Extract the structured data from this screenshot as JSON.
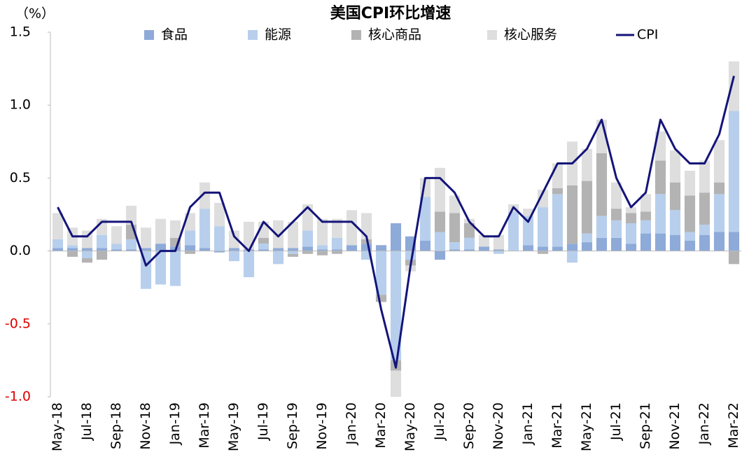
{
  "chart_data": {
    "type": "bar",
    "title": "美国CPI环比增速",
    "y_unit": "（%）",
    "categories": [
      "May-18",
      null,
      "Jul-18",
      null,
      "Sep-18",
      null,
      "Nov-18",
      null,
      "Jan-19",
      null,
      "Mar-19",
      null,
      "May-19",
      null,
      "Jul-19",
      null,
      "Sep-19",
      null,
      "Nov-19",
      null,
      "Jan-20",
      null,
      "Mar-20",
      null,
      "May-20",
      null,
      "Jul-20",
      null,
      "Sep-20",
      null,
      "Nov-20",
      null,
      "Jan-21",
      null,
      "Mar-21",
      null,
      "May-21",
      null,
      "Jul-21",
      null,
      "Sep-21",
      null,
      "Nov-21",
      null,
      "Jan-22",
      null,
      "Mar-22"
    ],
    "series": [
      {
        "name": "食品",
        "type": "bar",
        "color": "#8eaad8",
        "values": [
          0.02,
          0.02,
          0.02,
          0.02,
          0.01,
          0.01,
          0.02,
          0.05,
          0.03,
          0.04,
          0.02,
          -0.01,
          0.02,
          0.01,
          0.01,
          0.02,
          0.02,
          0.03,
          0.01,
          0.01,
          0.04,
          0.05,
          0.04,
          0.19,
          0.1,
          0.07,
          -0.06,
          0.01,
          0.01,
          0.03,
          0.01,
          0.0,
          0.04,
          0.03,
          0.03,
          0.05,
          0.06,
          0.09,
          0.09,
          0.05,
          0.12,
          0.12,
          0.11,
          0.07,
          0.11,
          0.13,
          0.13
        ]
      },
      {
        "name": "能源",
        "type": "bar",
        "color": "#b7cfec",
        "values": [
          0.06,
          0.02,
          -0.05,
          0.09,
          0.04,
          0.07,
          -0.26,
          -0.23,
          -0.24,
          0.1,
          0.27,
          0.17,
          -0.07,
          -0.18,
          0.04,
          -0.09,
          -0.02,
          0.11,
          0.03,
          0.08,
          0.0,
          -0.06,
          -0.3,
          -0.75,
          -0.06,
          0.3,
          0.13,
          0.05,
          0.08,
          0.0,
          -0.02,
          0.27,
          0.2,
          0.27,
          0.36,
          -0.08,
          0.06,
          0.15,
          0.12,
          0.14,
          0.09,
          0.27,
          0.17,
          0.06,
          0.07,
          0.26,
          0.83
        ]
      },
      {
        "name": "核心商品",
        "type": "bar",
        "color": "#b3b3b3",
        "values": [
          0.0,
          -0.04,
          -0.03,
          -0.06,
          0.0,
          0.1,
          0.0,
          0.0,
          0.06,
          -0.02,
          0.0,
          0.0,
          0.0,
          0.0,
          0.04,
          0.0,
          -0.02,
          -0.02,
          -0.03,
          -0.02,
          0.0,
          0.03,
          -0.05,
          -0.07,
          -0.04,
          0.0,
          0.14,
          0.2,
          0.1,
          0.0,
          0.0,
          0.0,
          0.0,
          -0.02,
          0.04,
          0.4,
          0.36,
          0.43,
          0.08,
          0.07,
          0.06,
          0.23,
          0.19,
          0.25,
          0.22,
          0.08,
          -0.09
        ]
      },
      {
        "name": "核心服务",
        "type": "bar",
        "color": "#dedede",
        "values": [
          0.18,
          0.12,
          0.12,
          0.11,
          0.12,
          0.13,
          0.14,
          0.17,
          0.12,
          0.12,
          0.18,
          0.16,
          0.12,
          0.19,
          0.11,
          0.19,
          0.18,
          0.18,
          0.18,
          0.13,
          0.24,
          0.18,
          0.0,
          -0.18,
          -0.04,
          0.13,
          0.3,
          0.12,
          0.03,
          0.08,
          0.1,
          0.05,
          0.05,
          0.12,
          0.17,
          0.3,
          0.22,
          0.23,
          0.18,
          0.04,
          0.12,
          0.2,
          0.22,
          0.17,
          0.22,
          0.29,
          0.34
        ]
      },
      {
        "name": "CPI",
        "type": "line",
        "color": "#14147a",
        "values": [
          0.3,
          0.1,
          0.1,
          0.2,
          0.2,
          0.2,
          -0.1,
          0.0,
          0.0,
          0.3,
          0.4,
          0.4,
          0.1,
          0.0,
          0.2,
          0.1,
          0.2,
          0.3,
          0.2,
          0.2,
          0.2,
          0.1,
          -0.4,
          -0.8,
          -0.1,
          0.5,
          0.5,
          0.4,
          0.2,
          0.1,
          0.1,
          0.3,
          0.2,
          0.4,
          0.6,
          0.6,
          0.7,
          0.9,
          0.5,
          0.3,
          0.4,
          0.9,
          0.7,
          0.6,
          0.6,
          0.8,
          1.2
        ]
      }
    ],
    "ylim": [
      -1.0,
      1.5
    ],
    "yticks": [
      {
        "value": -1.0,
        "label": "-1.0"
      },
      {
        "value": -0.5,
        "label": "-0.5"
      },
      {
        "value": 0,
        "label": "0.0"
      },
      {
        "value": 0.5,
        "label": "0.5"
      },
      {
        "value": 1.0,
        "label": "1.0"
      },
      {
        "value": 1.5,
        "label": "1.5"
      }
    ],
    "negative_tick_color": "#e00000",
    "grid": false,
    "legend": "top"
  }
}
